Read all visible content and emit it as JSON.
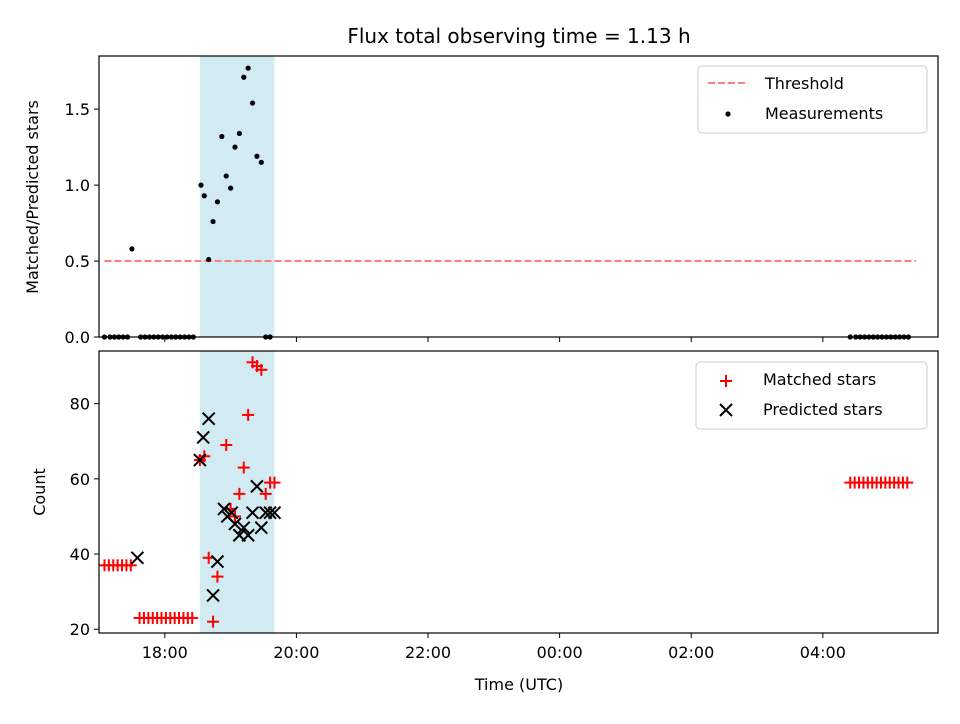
{
  "title": "Flux total observing time = 1.13 h",
  "colors": {
    "threshold": "#ff7f7f",
    "measurement": "#000000",
    "matched": "#ff0000",
    "predicted": "#000000",
    "span": "#add8e6"
  },
  "chart_data": [
    {
      "type": "scatter",
      "ylabel": "Matched/Predicted stars",
      "xlim": [
        "17:00",
        "05:45"
      ],
      "ylim": [
        0,
        1.85
      ],
      "yticks": [
        "0.0",
        "0.5",
        "1.0",
        "1.5"
      ],
      "xticks": [
        "18:00",
        "20:00",
        "22:00",
        "00:00",
        "02:00",
        "04:00"
      ],
      "highlight_span": [
        "18:32",
        "19:40"
      ],
      "legend": [
        "Threshold",
        "Measurements"
      ],
      "legend_position": "upper right",
      "series": [
        {
          "name": "Threshold",
          "style": "dashed line",
          "x": [
            "17:05",
            "05:25"
          ],
          "y": [
            0.5,
            0.5
          ]
        },
        {
          "name": "Measurements",
          "style": "dots",
          "x": [
            "17:05",
            "17:10",
            "17:14",
            "17:18",
            "17:22",
            "17:26",
            "17:30",
            "17:38",
            "17:42",
            "17:46",
            "17:50",
            "17:54",
            "17:58",
            "18:02",
            "18:06",
            "18:10",
            "18:14",
            "18:18",
            "18:22",
            "18:26",
            "18:33",
            "18:36",
            "18:40",
            "18:44",
            "18:48",
            "18:52",
            "18:56",
            "19:00",
            "19:04",
            "19:08",
            "19:12",
            "19:16",
            "19:20",
            "19:24",
            "19:28",
            "19:32",
            "19:36",
            "04:25",
            "04:30",
            "04:34",
            "04:38",
            "04:42",
            "04:46",
            "04:50",
            "04:54",
            "04:58",
            "05:02",
            "05:06",
            "05:10",
            "05:14",
            "05:18"
          ],
          "y": [
            0,
            0,
            0,
            0,
            0,
            0,
            0.58,
            0,
            0,
            0,
            0,
            0,
            0,
            0,
            0,
            0,
            0,
            0,
            0,
            0,
            1.0,
            0.93,
            0.51,
            0.76,
            0.89,
            1.32,
            1.06,
            0.98,
            1.25,
            1.34,
            1.71,
            1.77,
            1.54,
            1.19,
            1.15,
            0,
            0,
            0,
            0,
            0,
            0,
            0,
            0,
            0,
            0,
            0,
            0,
            0,
            0,
            0,
            0
          ]
        }
      ]
    },
    {
      "type": "scatter",
      "ylabel": "Count",
      "xlabel": "Time (UTC)",
      "xlim": [
        "17:00",
        "05:45"
      ],
      "ylim": [
        19,
        94
      ],
      "yticks": [
        "20",
        "40",
        "60",
        "80"
      ],
      "xticks": [
        "18:00",
        "20:00",
        "22:00",
        "00:00",
        "02:00",
        "04:00"
      ],
      "highlight_span": [
        "18:32",
        "19:40"
      ],
      "legend": [
        "Matched stars",
        "Predicted stars"
      ],
      "legend_position": "upper right",
      "series": [
        {
          "name": "Matched stars",
          "marker": "+",
          "x": [
            "17:05",
            "17:09",
            "17:13",
            "17:17",
            "17:21",
            "17:25",
            "17:29",
            "17:37",
            "17:41",
            "17:45",
            "17:49",
            "17:53",
            "17:57",
            "18:01",
            "18:05",
            "18:09",
            "18:13",
            "18:17",
            "18:21",
            "18:25",
            "18:32",
            "18:36",
            "18:40",
            "18:44",
            "18:48",
            "18:56",
            "19:00",
            "19:04",
            "19:08",
            "19:12",
            "19:16",
            "19:20",
            "19:24",
            "19:28",
            "19:32",
            "19:36",
            "19:40",
            "04:25",
            "04:29",
            "04:33",
            "04:37",
            "04:41",
            "04:45",
            "04:49",
            "04:53",
            "04:57",
            "05:01",
            "05:05",
            "05:09",
            "05:13",
            "05:17"
          ],
          "y": [
            37,
            37,
            37,
            37,
            37,
            37,
            37,
            23,
            23,
            23,
            23,
            23,
            23,
            23,
            23,
            23,
            23,
            23,
            23,
            23,
            65,
            66,
            39,
            22,
            34,
            69,
            52,
            50,
            56,
            63,
            77,
            91,
            90,
            89,
            56,
            59,
            59,
            59,
            59,
            59,
            59,
            59,
            59,
            59,
            59,
            59,
            59,
            59,
            59,
            59,
            59
          ]
        },
        {
          "name": "Predicted stars",
          "marker": "x",
          "x": [
            "17:35",
            "18:32",
            "18:35",
            "18:40",
            "18:44",
            "18:48",
            "18:54",
            "18:57",
            "19:01",
            "19:04",
            "19:08",
            "19:12",
            "19:16",
            "19:20",
            "19:24",
            "19:28",
            "19:32",
            "19:36",
            "19:40"
          ],
          "y": [
            39,
            65,
            71,
            76,
            29,
            38,
            52,
            50,
            51,
            48,
            45,
            47,
            45,
            51,
            58,
            47,
            51,
            51,
            51
          ]
        }
      ]
    }
  ]
}
